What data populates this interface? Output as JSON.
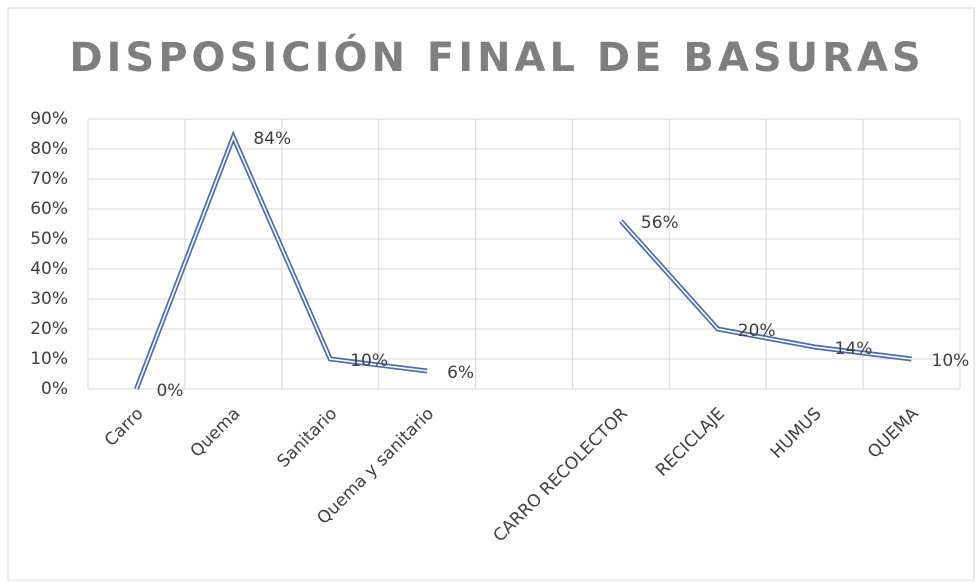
{
  "chart_data": {
    "type": "line",
    "title": "DISPOSICIÓN FINAL DE BASURAS",
    "categories": [
      "Carro",
      "Quema",
      "Sanitario",
      "Quema y sanitario",
      null,
      "CARRO RECOLECTOR",
      "RECICLAJE",
      "HUMUS",
      "QUEMA"
    ],
    "series": [
      {
        "name": null,
        "color": "#4a6cb3",
        "values": [
          0,
          84,
          10,
          6,
          null,
          56,
          20,
          14,
          10
        ],
        "value_labels": [
          "0%",
          "84%",
          "10%",
          "6%",
          null,
          "56%",
          "20%",
          "14%",
          "10%"
        ]
      }
    ],
    "ylim": [
      0,
      90
    ],
    "yticks": [
      {
        "value": 0,
        "label": "0%"
      },
      {
        "value": 10,
        "label": "10%"
      },
      {
        "value": 20,
        "label": "20%"
      },
      {
        "value": 30,
        "label": "30%"
      },
      {
        "value": 40,
        "label": "40%"
      },
      {
        "value": 50,
        "label": "50%"
      },
      {
        "value": 60,
        "label": "60%"
      },
      {
        "value": 70,
        "label": "70%"
      },
      {
        "value": 80,
        "label": "80%"
      },
      {
        "value": 90,
        "label": "90%"
      }
    ],
    "grid": true
  }
}
